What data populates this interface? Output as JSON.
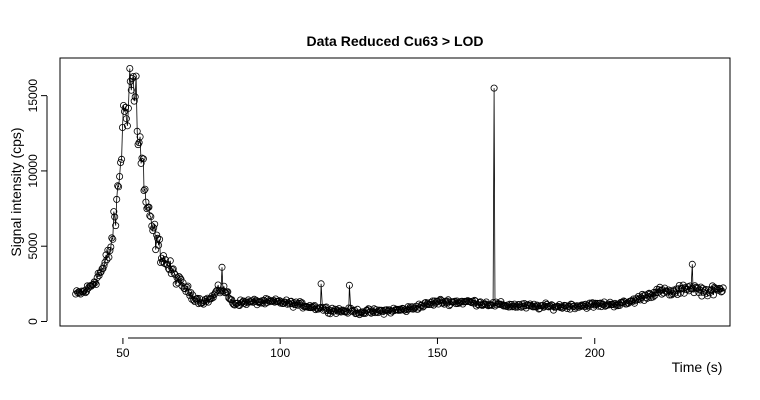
{
  "chart_data": {
    "type": "scatter",
    "title": "Data Reduced Cu63 > LOD",
    "xlabel": "Time (s)",
    "ylabel": "Signal intensity (cps)",
    "xlim": [
      30,
      243
    ],
    "ylim": [
      -300,
      17500
    ],
    "x_ticks": [
      50,
      100,
      150,
      200
    ],
    "y_ticks": [
      0,
      5000,
      10000,
      15000
    ],
    "x_tick_labels": [
      "50",
      "100",
      "150",
      "200"
    ],
    "y_tick_labels": [
      "0",
      "5000",
      "10000",
      "15000"
    ],
    "grid": false,
    "legend": "none",
    "point_style": "open-circle",
    "line_connected": true,
    "x_range": [
      35,
      241
    ],
    "x_step": 0.31,
    "profile": [
      [
        35,
        1800
      ],
      [
        38,
        2000
      ],
      [
        40,
        2400
      ],
      [
        42,
        3000
      ],
      [
        44,
        3600
      ],
      [
        46,
        4800
      ],
      [
        48,
        7500
      ],
      [
        49,
        10000
      ],
      [
        50,
        13000
      ],
      [
        51,
        14500
      ],
      [
        52,
        15500
      ],
      [
        53,
        16000
      ],
      [
        54,
        14500
      ],
      [
        55,
        12500
      ],
      [
        56,
        10500
      ],
      [
        57,
        8500
      ],
      [
        58,
        7000
      ],
      [
        60,
        5800
      ],
      [
        62,
        4600
      ],
      [
        64,
        3800
      ],
      [
        66,
        3200
      ],
      [
        68,
        2600
      ],
      [
        70,
        2200
      ],
      [
        72,
        1700
      ],
      [
        75,
        1300
      ],
      [
        78,
        1500
      ],
      [
        80,
        2000
      ],
      [
        82,
        2200
      ],
      [
        85,
        1200
      ],
      [
        90,
        1300
      ],
      [
        100,
        1300
      ],
      [
        110,
        1000
      ],
      [
        115,
        800
      ],
      [
        120,
        700
      ],
      [
        125,
        650
      ],
      [
        130,
        650
      ],
      [
        140,
        800
      ],
      [
        150,
        1300
      ],
      [
        160,
        1300
      ],
      [
        165,
        1200
      ],
      [
        170,
        1100
      ],
      [
        180,
        1000
      ],
      [
        190,
        1000
      ],
      [
        200,
        1100
      ],
      [
        210,
        1200
      ],
      [
        215,
        1600
      ],
      [
        220,
        2000
      ],
      [
        225,
        1900
      ],
      [
        230,
        2300
      ],
      [
        235,
        2000
      ],
      [
        241,
        2100
      ]
    ],
    "noise_fraction": 0.22,
    "noise_floor": 280,
    "spikes": [
      {
        "x": 168,
        "y": 15500
      },
      {
        "x": 113,
        "y": 2500
      },
      {
        "x": 122,
        "y": 2400
      },
      {
        "x": 81.5,
        "y": 3600
      },
      {
        "x": 231,
        "y": 3800
      },
      {
        "x": 52.2,
        "y": 16800
      },
      {
        "x": 54.2,
        "y": 16300
      },
      {
        "x": 56.5,
        "y": 10800
      }
    ]
  }
}
